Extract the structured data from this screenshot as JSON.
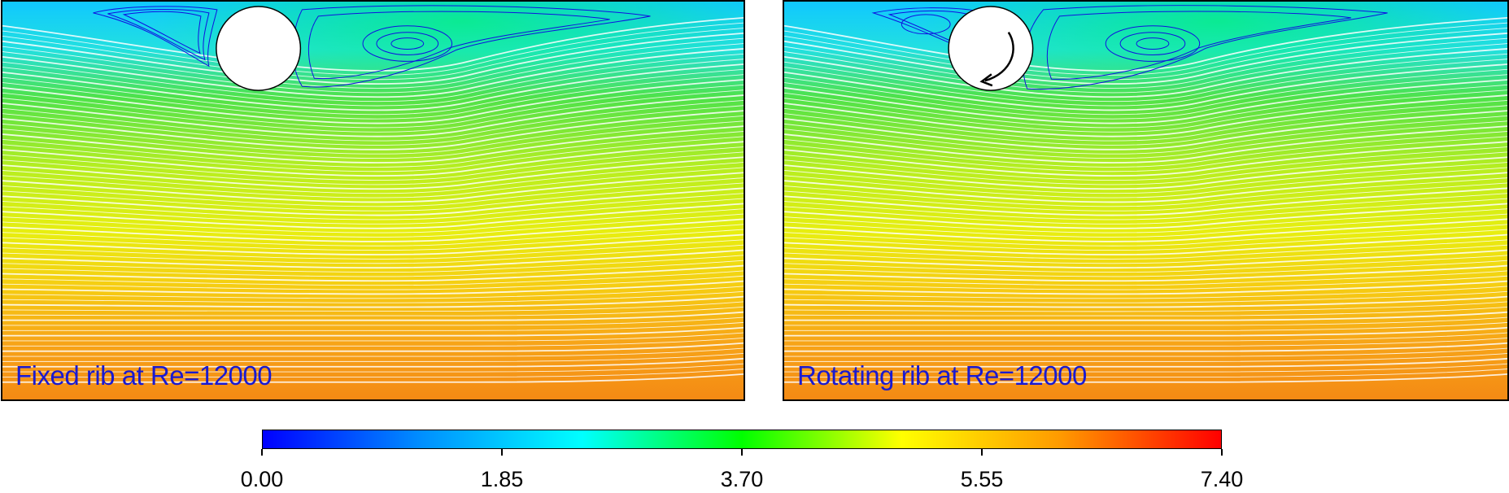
{
  "panels": [
    {
      "id": "fixed",
      "label": "Fixed rib at Re=12000",
      "rotating": false
    },
    {
      "id": "rotating",
      "label": "Rotating rib at Re=12000",
      "rotating": true
    }
  ],
  "colorbar": {
    "min": 0.0,
    "max": 7.4,
    "colors": [
      "#0000ff",
      "#0090ff",
      "#00ffff",
      "#00ff00",
      "#ffff00",
      "#ff9900",
      "#ff0000"
    ],
    "tick_labels": [
      "0.00",
      "1.85",
      "3.70",
      "5.55",
      "7.40"
    ]
  },
  "colors": {
    "label": "#1a1ad0",
    "streamline": "#ffffff",
    "vortex_lines": "#1010e0"
  },
  "icons": [
    "rotation-arrow-icon"
  ]
}
